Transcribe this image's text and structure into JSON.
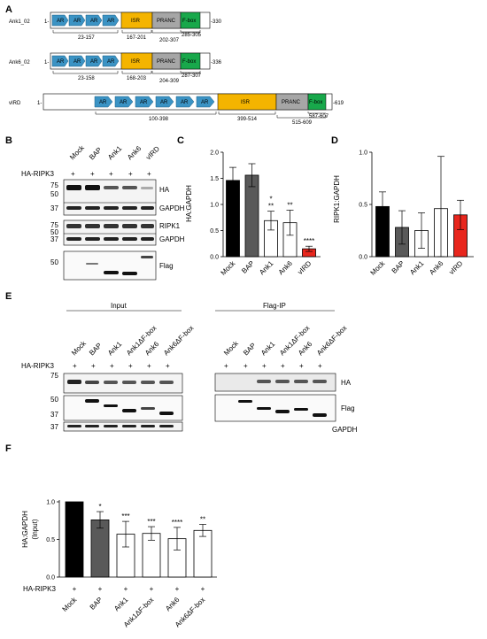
{
  "panels": [
    "A",
    "B",
    "C",
    "D",
    "E",
    "F"
  ],
  "panel_a": {
    "proteins": [
      {
        "name": "Ank1_02",
        "start": "1-",
        "end": "-330",
        "domains": [
          "AR",
          "AR",
          "AR",
          "AR",
          "ISR",
          "PRANC",
          "F-box"
        ],
        "ranges": [
          "23-157",
          "167-201",
          "202-307",
          "285-305"
        ]
      },
      {
        "name": "Ank6_02",
        "start": "1-",
        "end": "-336",
        "domains": [
          "AR",
          "AR",
          "AR",
          "AR",
          "ISR",
          "PRANC",
          "F-box"
        ],
        "ranges": [
          "23-158",
          "168-203",
          "204-309",
          "287-307"
        ]
      },
      {
        "name": "vIRD",
        "start": "1-",
        "end": "-619",
        "domains": [
          "AR",
          "AR",
          "AR",
          "AR",
          "AR",
          "AR",
          "ISR",
          "PRANC",
          "F-box"
        ],
        "ranges": [
          "100-398",
          "399-514",
          "515-609",
          "587-607"
        ]
      }
    ]
  },
  "panel_b": {
    "lanes": [
      "Mock",
      "BAP",
      "Ank1",
      "Ank6",
      "vIRD"
    ],
    "row_label": "HA-RIPK3",
    "plus": [
      "+",
      "+",
      "+",
      "+",
      "+"
    ],
    "blots": [
      {
        "label": "HA",
        "mw": [
          "75",
          "50"
        ]
      },
      {
        "label": "GAPDH",
        "mw": [
          "37"
        ]
      },
      {
        "label": "RIPK1",
        "mw": [
          "75",
          "50"
        ]
      },
      {
        "label": "GAPDH",
        "mw": [
          "37"
        ]
      },
      {
        "label": "Flag",
        "mw": [
          "50"
        ]
      }
    ]
  },
  "panel_e": {
    "input_label": "Input",
    "ip_label": "Flag-IP",
    "lanes": [
      "Mock",
      "BAP",
      "Ank1",
      "Ank1ΔF-box",
      "Ank6",
      "Ank6ΔF-box"
    ],
    "row_label": "HA-RIPK3",
    "plus": [
      "+",
      "+",
      "+",
      "+",
      "+",
      "+"
    ],
    "blot_labels": [
      "HA",
      "Flag",
      "GAPDH"
    ],
    "mw_input": [
      "75",
      "50",
      "37",
      "37"
    ]
  },
  "chart_data": [
    {
      "panel": "C",
      "type": "bar",
      "categories": [
        "Mock",
        "BAP",
        "Ank1",
        "Ank6",
        "vIRD"
      ],
      "values": [
        1.46,
        1.56,
        0.69,
        0.65,
        0.15
      ],
      "errors": [
        0.25,
        0.22,
        0.18,
        0.24,
        0.05
      ],
      "significance": [
        "",
        "",
        "**",
        "**",
        "****"
      ],
      "extra_marks": [
        "",
        "",
        "*",
        "",
        ""
      ],
      "ylabel": "HA:GAPDH",
      "ylim": [
        0,
        2.0
      ],
      "yticks": [
        "0.0",
        "0.5",
        "1.0",
        "1.5",
        "2.0"
      ],
      "colors": [
        "#000000",
        "#595959",
        "#ffffff",
        "#ffffff",
        "#e8261d"
      ],
      "extra_mark_color": "#e8261d"
    },
    {
      "panel": "D",
      "type": "bar",
      "categories": [
        "Mock",
        "BAP",
        "Ank1",
        "Ank6",
        "vIRD"
      ],
      "values": [
        0.48,
        0.28,
        0.25,
        0.46,
        0.4
      ],
      "errors": [
        0.14,
        0.16,
        0.17,
        0.5,
        0.14
      ],
      "ylabel": "RIPK1:GAPDH",
      "ylim": [
        0,
        1.0
      ],
      "yticks": [
        "0.0",
        "0.5",
        "1.0"
      ],
      "colors": [
        "#000000",
        "#595959",
        "#ffffff",
        "#ffffff",
        "#e8261d"
      ]
    },
    {
      "panel": "F",
      "type": "bar",
      "categories": [
        "Mock",
        "BAP",
        "Ank1",
        "Ank1ΔF-box",
        "Ank6",
        "Ank6ΔF-box"
      ],
      "values": [
        1.0,
        0.76,
        0.57,
        0.58,
        0.51,
        0.62
      ],
      "errors": [
        0.0,
        0.11,
        0.17,
        0.09,
        0.15,
        0.08
      ],
      "significance": [
        "",
        "*",
        "***",
        "***",
        "****",
        "**"
      ],
      "ylabel": "HA:GAPDH\n(Input)",
      "ylim": [
        0,
        1.0
      ],
      "yticks": [
        "0.0",
        "0.5",
        "1.0"
      ],
      "colors": [
        "#000000",
        "#595959",
        "#ffffff",
        "#ffffff",
        "#ffffff",
        "#ffffff"
      ],
      "row_label": "HA-RIPK3",
      "plus": [
        "+",
        "+",
        "+",
        "+",
        "+",
        "+"
      ]
    }
  ],
  "colors": {
    "ar": "#3b93c4",
    "isr": "#f4b400",
    "pranc": "#a6a6a6",
    "fbox": "#18a84b"
  }
}
